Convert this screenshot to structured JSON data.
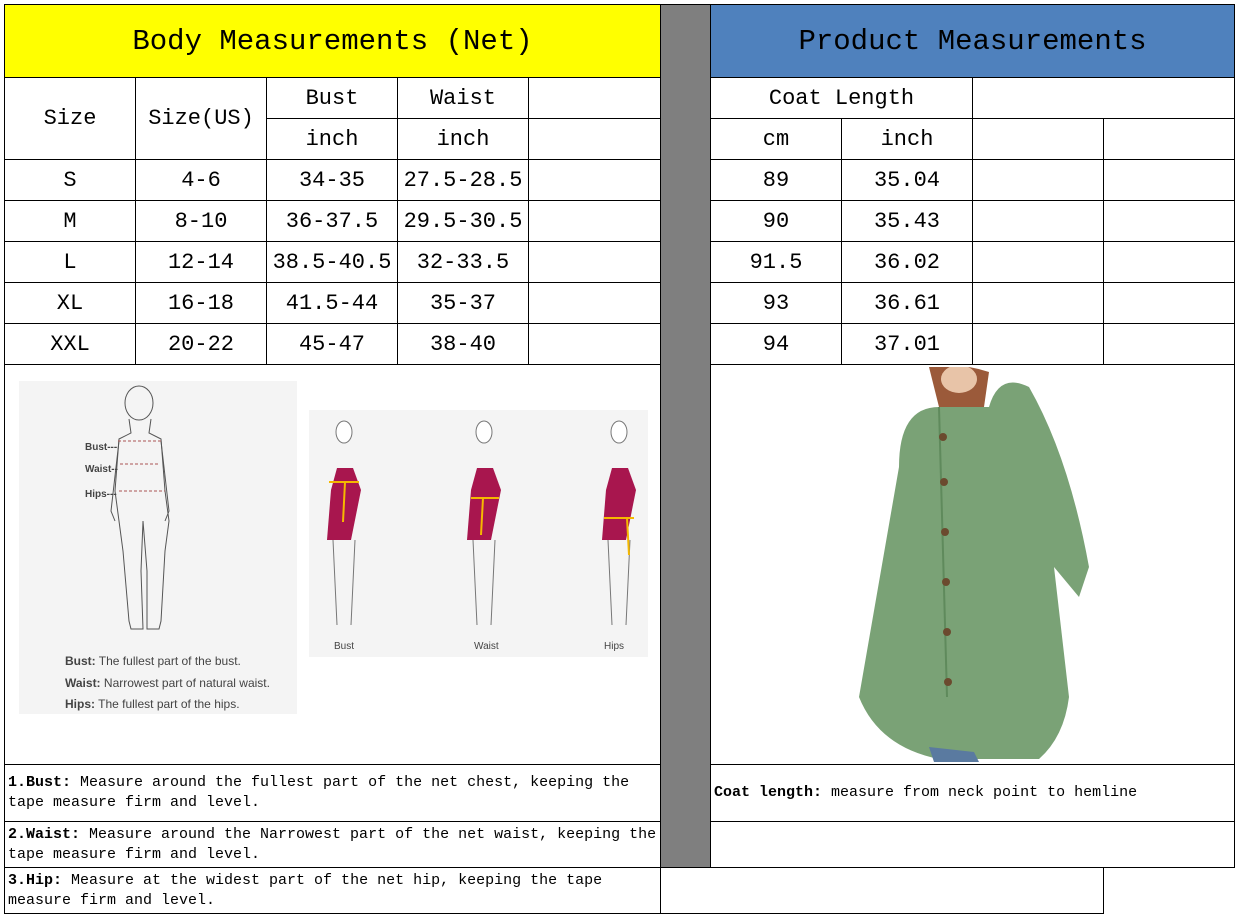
{
  "left_header": "Body Measurements (Net)",
  "right_header": "Product Measurements",
  "colors": {
    "left_header_bg": "#ffff00",
    "right_header_bg": "#4f81bd",
    "divider": "#7f7f7f"
  },
  "body_columns": {
    "size": "Size",
    "size_us": "Size(US)",
    "bust": "Bust",
    "waist": "Waist",
    "bust_unit": "inch",
    "waist_unit": "inch"
  },
  "product_columns": {
    "coat_length": "Coat Length",
    "cm": "cm",
    "inch": "inch"
  },
  "rows": [
    {
      "size": "S",
      "us": "4-6",
      "bust": "34-35",
      "waist": "27.5-28.5",
      "cm": "89",
      "inch": "35.04"
    },
    {
      "size": "M",
      "us": "8-10",
      "bust": "36-37.5",
      "waist": "29.5-30.5",
      "cm": "90",
      "inch": "35.43"
    },
    {
      "size": "L",
      "us": "12-14",
      "bust": "38.5-40.5",
      "waist": "32-33.5",
      "cm": "91.5",
      "inch": "36.02"
    },
    {
      "size": "XL",
      "us": "16-18",
      "bust": "41.5-44",
      "waist": "35-37",
      "cm": "93",
      "inch": "36.61"
    },
    {
      "size": "XXL",
      "us": "20-22",
      "bust": "45-47",
      "waist": "38-40",
      "cm": "94",
      "inch": "37.01"
    }
  ],
  "illustration": {
    "labels": {
      "bust": "Bust---",
      "waist": "Waist--",
      "hips": "Hips---"
    },
    "legend": [
      {
        "term": "Bust:",
        "desc": "The fullest part of the bust."
      },
      {
        "term": "Waist:",
        "desc": "Narrowest part of natural waist."
      },
      {
        "term": "Hips:",
        "desc": "The fullest part of the hips."
      }
    ],
    "figure_captions": [
      "Bust",
      "Waist",
      "Hips"
    ]
  },
  "notes": [
    {
      "term": "1.Bust:",
      "text": "  Measure around the fullest part of the net chest, keeping the tape  measure firm and level."
    },
    {
      "term": "2.Waist:",
      "text": " Measure around the Narrowest part of the net waist, keeping the tape  measure firm and level."
    },
    {
      "term": "3.Hip:",
      "text": " Measure at the widest part of the net hip, keeping the tape measure firm and level."
    }
  ],
  "product_note": {
    "term": "Coat length:",
    "text": " measure from neck point to hemline"
  }
}
